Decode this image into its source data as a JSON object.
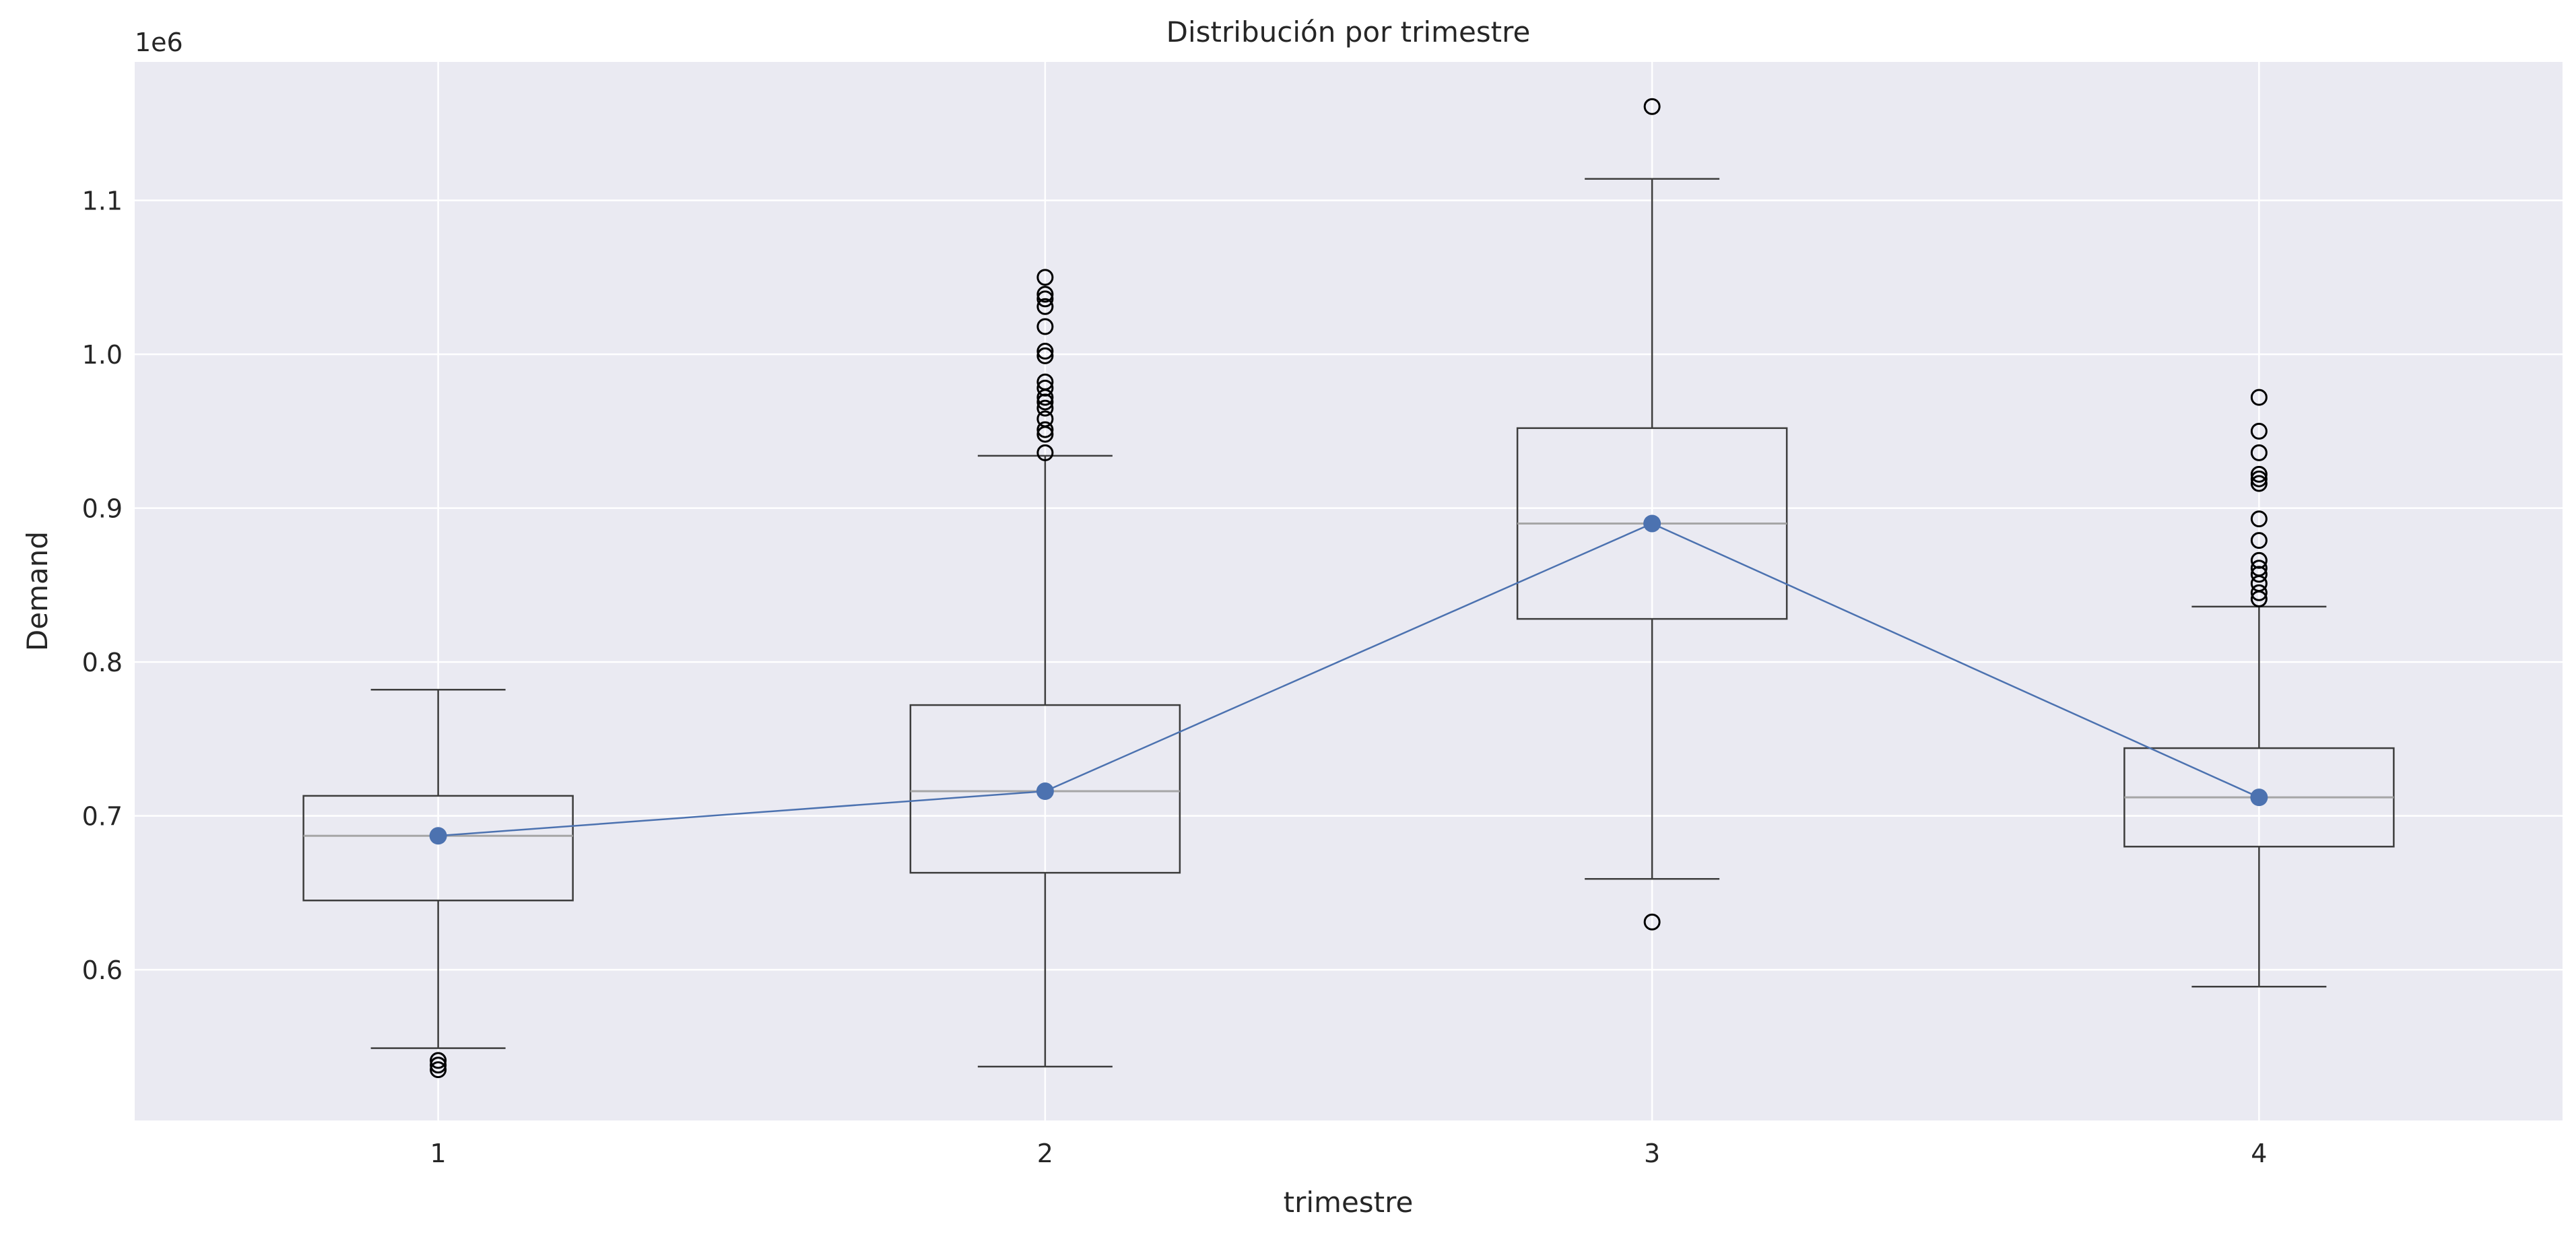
{
  "chart_data": {
    "type": "box",
    "title": "Distribución por trimestre",
    "xlabel": "trimestre",
    "ylabel": "Demand",
    "offset_label": "1e6",
    "y_scale": 1000000,
    "ylim": [
      0.502,
      1.19
    ],
    "xlim": [
      0.5,
      4.5
    ],
    "grid": true,
    "legend": "none",
    "categories": [
      "1",
      "2",
      "3",
      "4"
    ],
    "y_ticks": [
      0.6,
      0.7,
      0.8,
      0.9,
      1.0,
      1.1
    ],
    "y_tick_labels": [
      "0.6",
      "0.7",
      "0.8",
      "0.9",
      "1.0",
      "1.1"
    ],
    "boxes": [
      {
        "category": "1",
        "whisker_low": 0.549,
        "q1": 0.645,
        "median": 0.687,
        "q3": 0.713,
        "whisker_high": 0.782,
        "outliers": [
          0.535,
          0.538,
          0.541
        ]
      },
      {
        "category": "2",
        "whisker_low": 0.537,
        "q1": 0.663,
        "median": 0.716,
        "q3": 0.772,
        "whisker_high": 0.934,
        "outliers": [
          0.936,
          0.948,
          0.951,
          0.958,
          0.965,
          0.969,
          0.972,
          0.978,
          0.982,
          0.999,
          1.002,
          1.018,
          1.031,
          1.036,
          1.039,
          1.05
        ]
      },
      {
        "category": "3",
        "whisker_low": 0.659,
        "q1": 0.828,
        "median": 0.89,
        "q3": 0.952,
        "whisker_high": 1.114,
        "outliers": [
          0.631,
          1.161
        ]
      },
      {
        "category": "4",
        "whisker_low": 0.589,
        "q1": 0.68,
        "median": 0.712,
        "q3": 0.744,
        "whisker_high": 0.836,
        "outliers": [
          0.841,
          0.845,
          0.851,
          0.857,
          0.861,
          0.866,
          0.879,
          0.893,
          0.916,
          0.919,
          0.922,
          0.936,
          0.95,
          0.972
        ]
      }
    ],
    "mean_line": {
      "x": [
        "1",
        "2",
        "3",
        "4"
      ],
      "values": [
        0.687,
        0.716,
        0.89,
        0.712
      ]
    },
    "colors": {
      "plot_background": "#eaeaf2",
      "grid": "#ffffff",
      "box": "#3d3d3d",
      "median": "#a6a6a6",
      "mean_line": "#4c72b0",
      "outlier": "#000000"
    }
  }
}
